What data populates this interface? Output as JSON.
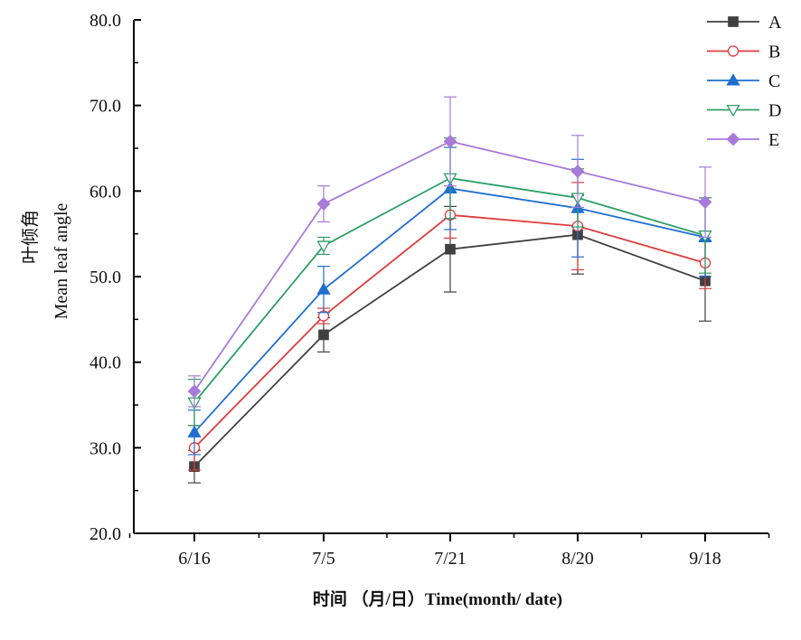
{
  "chart_data": {
    "type": "line",
    "categories": [
      "6/16",
      "7/5",
      "7/21",
      "8/20",
      "9/18"
    ],
    "xlabel": "时间 （月/日）Time(month/ date)",
    "ylabel_cn": "叶倾角",
    "ylabel": "Mean leaf angle",
    "ylim": [
      20,
      80
    ],
    "yticks": [
      "20.0",
      "30.0",
      "40.0",
      "50.0",
      "60.0",
      "70.0",
      "80.0"
    ],
    "grid": false,
    "legend_position": "top-right",
    "series": [
      {
        "name": "A",
        "color": "#404040",
        "marker": "square",
        "values": [
          27.8,
          43.2,
          53.2,
          54.9,
          49.5
        ],
        "errors": [
          1.9,
          2.0,
          5.0,
          4.6,
          4.7
        ]
      },
      {
        "name": "B",
        "color": "#e03c3c",
        "marker": "circle-open",
        "values": [
          30.0,
          45.4,
          57.2,
          55.9,
          51.6
        ],
        "errors": [
          2.6,
          0.9,
          2.7,
          5.1,
          3.0
        ]
      },
      {
        "name": "C",
        "color": "#1f6fd1",
        "marker": "triangle-up",
        "values": [
          31.8,
          48.5,
          60.3,
          58.0,
          54.6
        ],
        "errors": [
          2.6,
          2.7,
          4.8,
          5.7,
          4.6
        ]
      },
      {
        "name": "D",
        "color": "#2e9e66",
        "marker": "triangle-down-open",
        "values": [
          35.3,
          53.6,
          61.5,
          59.2,
          54.8
        ],
        "errors": [
          2.7,
          1.0,
          4.7,
          3.4,
          4.4
        ]
      },
      {
        "name": "E",
        "color": "#a87ad9",
        "marker": "diamond",
        "values": [
          36.6,
          58.5,
          65.8,
          62.3,
          58.7
        ],
        "errors": [
          1.8,
          2.1,
          5.2,
          4.2,
          4.1
        ]
      }
    ]
  }
}
